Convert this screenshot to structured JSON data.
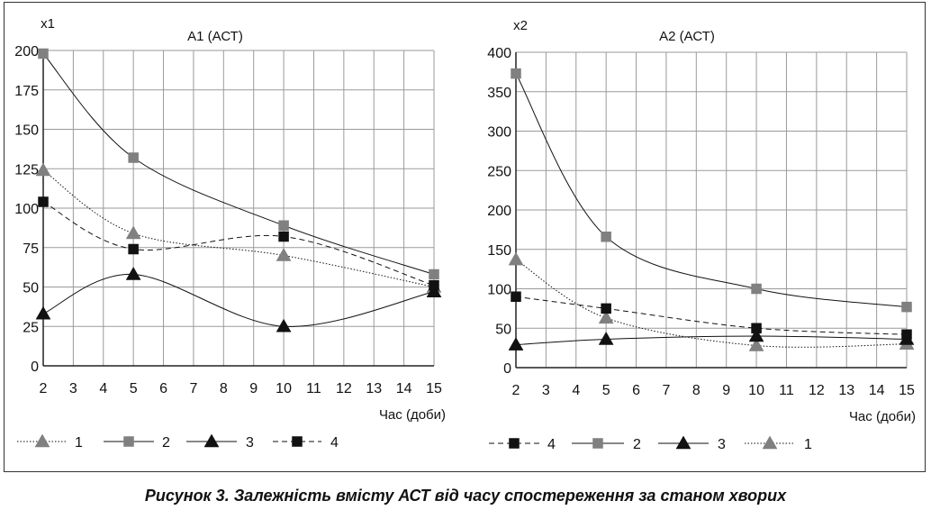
{
  "caption": "Рисунок 3. Залежність вмісту АСТ від часу спостереження за станом хворих",
  "chart_data": [
    {
      "type": "line",
      "title": "А1 (АСТ)",
      "ylabel": "x1",
      "xlabel": "Час (доби)",
      "x_ticks": [
        2,
        3,
        4,
        5,
        6,
        7,
        8,
        9,
        10,
        11,
        12,
        13,
        14,
        15
      ],
      "xlim": [
        2,
        15
      ],
      "y_ticks": [
        0,
        25,
        50,
        75,
        100,
        125,
        150,
        175,
        200
      ],
      "ylim": [
        0,
        200
      ],
      "grid": true,
      "legend_position": "bottom",
      "legend_order": [
        "1",
        "2",
        "3",
        "4"
      ],
      "series": [
        {
          "name": "1",
          "x": [
            2,
            5,
            10,
            15
          ],
          "y": [
            124,
            84,
            70,
            50
          ],
          "marker": "triangle",
          "color": "#808080",
          "line": "dotted"
        },
        {
          "name": "2",
          "x": [
            2,
            5,
            10,
            15
          ],
          "y": [
            198,
            132,
            89,
            58
          ],
          "marker": "square",
          "color": "#808080",
          "line": "solid"
        },
        {
          "name": "3",
          "x": [
            2,
            5,
            10,
            15
          ],
          "y": [
            33,
            58,
            25,
            47
          ],
          "marker": "triangle",
          "color": "#111111",
          "line": "solid"
        },
        {
          "name": "4",
          "x": [
            2,
            5,
            10,
            15
          ],
          "y": [
            104,
            74,
            82,
            51
          ],
          "marker": "square",
          "color": "#111111",
          "line": "dashed"
        }
      ]
    },
    {
      "type": "line",
      "title": "А2 (АСТ)",
      "ylabel": "x2",
      "xlabel": "Час (доби)",
      "x_ticks": [
        2,
        3,
        4,
        5,
        6,
        7,
        8,
        9,
        10,
        11,
        12,
        13,
        14,
        15
      ],
      "xlim": [
        2,
        15
      ],
      "y_ticks": [
        0,
        50,
        100,
        150,
        200,
        250,
        300,
        350,
        400
      ],
      "ylim": [
        0,
        400
      ],
      "grid": true,
      "legend_position": "bottom",
      "legend_order": [
        "4",
        "2",
        "3",
        "1"
      ],
      "series": [
        {
          "name": "1",
          "x": [
            2,
            5,
            10,
            15
          ],
          "y": [
            137,
            63,
            28,
            30
          ],
          "marker": "triangle",
          "color": "#808080",
          "line": "dotted"
        },
        {
          "name": "2",
          "x": [
            2,
            5,
            10,
            15
          ],
          "y": [
            373,
            166,
            100,
            77
          ],
          "marker": "square",
          "color": "#808080",
          "line": "solid"
        },
        {
          "name": "3",
          "x": [
            2,
            5,
            10,
            15
          ],
          "y": [
            29,
            36,
            40,
            36
          ],
          "marker": "triangle",
          "color": "#111111",
          "line": "solid"
        },
        {
          "name": "4",
          "x": [
            2,
            5,
            10,
            15
          ],
          "y": [
            90,
            75,
            50,
            42
          ],
          "marker": "square",
          "color": "#111111",
          "line": "dashed"
        }
      ]
    }
  ]
}
